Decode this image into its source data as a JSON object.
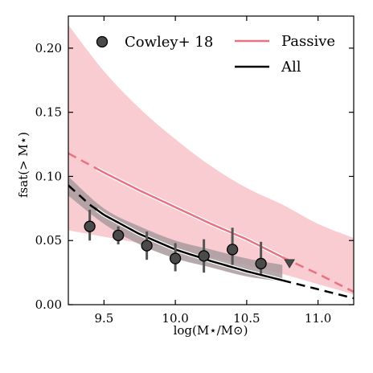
{
  "chart_data": {
    "type": "line",
    "xlim": [
      9.25,
      11.25
    ],
    "ylim": [
      0.0,
      0.225
    ],
    "x_ticks": [
      9.5,
      10.0,
      10.5,
      11.0
    ],
    "x_tick_labels": [
      "9.5",
      "10.0",
      "10.5",
      "11.0"
    ],
    "y_ticks": [
      0.0,
      0.05,
      0.1,
      0.15,
      0.2
    ],
    "y_tick_labels": [
      "0.00",
      "0.05",
      "0.10",
      "0.15",
      "0.20"
    ],
    "xlabel": "log(M⋆/M⊙)",
    "ylabel": "fsat(> M⋆)",
    "grid": false,
    "legend_placement": "top",
    "colors": {
      "passive": "#e8727f",
      "passive_band": "#f9ccd2",
      "all": "#000000",
      "all_band": "#b8b8b8",
      "all_band_dark": "#a99a9c",
      "marker_fill": "#4a4a4a",
      "errorbar": "#555555"
    },
    "legend": {
      "cowley": "Cowley+ 18",
      "passive": "Passive",
      "all": "All"
    },
    "series": [
      {
        "name": "Passive",
        "style": "line",
        "solid_range": [
          9.45,
          10.75
        ],
        "x": [
          9.25,
          9.5,
          9.75,
          10.0,
          10.25,
          10.5,
          10.75,
          11.0,
          11.25
        ],
        "y": [
          0.118,
          0.103,
          0.089,
          0.076,
          0.063,
          0.051,
          0.037,
          0.024,
          0.01
        ]
      },
      {
        "name": "All",
        "style": "line",
        "solid_range": [
          9.45,
          10.75
        ],
        "x": [
          9.25,
          9.4,
          9.5,
          9.75,
          10.0,
          10.25,
          10.5,
          10.75,
          11.0,
          11.25
        ],
        "y": [
          0.093,
          0.078,
          0.07,
          0.055,
          0.043,
          0.034,
          0.026,
          0.019,
          0.012,
          0.005
        ]
      },
      {
        "name": "Passive band",
        "style": "band",
        "x": [
          9.25,
          9.5,
          9.75,
          10.0,
          10.25,
          10.5,
          10.75,
          11.0,
          11.25
        ],
        "upper": [
          0.218,
          0.182,
          0.153,
          0.129,
          0.108,
          0.091,
          0.078,
          0.063,
          0.052
        ],
        "lower": [
          0.058,
          0.053,
          0.048,
          0.043,
          0.037,
          0.031,
          0.024,
          0.016,
          0.008
        ]
      },
      {
        "name": "All band",
        "style": "band",
        "x": [
          9.25,
          9.5,
          9.75,
          10.0,
          10.25,
          10.5,
          10.75
        ],
        "upper": [
          0.1,
          0.075,
          0.061,
          0.05,
          0.043,
          0.036,
          0.031
        ],
        "lower": [
          0.085,
          0.063,
          0.047,
          0.036,
          0.029,
          0.022,
          0.018
        ]
      },
      {
        "name": "Cowley+ 18",
        "style": "errorbar",
        "x": [
          9.4,
          9.6,
          9.8,
          10.0,
          10.2,
          10.4,
          10.6
        ],
        "y": [
          0.061,
          0.054,
          0.046,
          0.036,
          0.038,
          0.043,
          0.032
        ],
        "yerr_low": [
          0.011,
          0.007,
          0.011,
          0.01,
          0.013,
          0.012,
          0.008
        ],
        "yerr_high": [
          0.013,
          0.007,
          0.011,
          0.012,
          0.013,
          0.017,
          0.017
        ]
      },
      {
        "name": "Cowley+ 18 upper limit",
        "style": "marker",
        "x": [
          10.8
        ],
        "y": [
          0.032
        ]
      }
    ]
  }
}
